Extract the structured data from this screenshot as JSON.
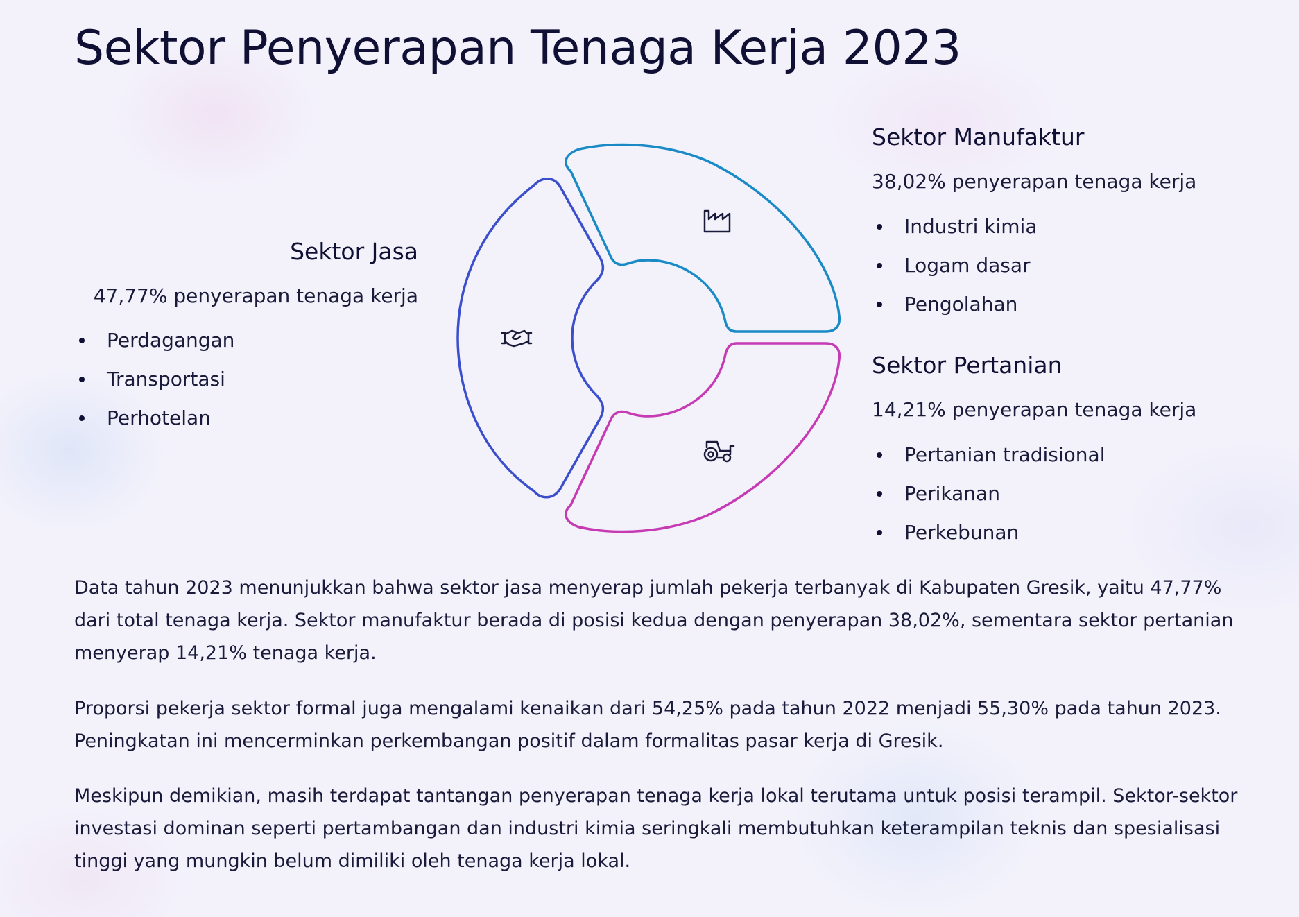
{
  "title": "Sektor Penyerapan Tenaga Kerja 2023",
  "sectors": {
    "jasa": {
      "name": "Sektor Jasa",
      "share": "47,77% penyerapan tenaga kerja",
      "share_value": 47.77,
      "items": [
        "Perdagangan",
        "Transportasi",
        "Perhotelan"
      ],
      "color": "#3b4fcc",
      "icon": "handshake-icon"
    },
    "manufaktur": {
      "name": "Sektor Manufaktur",
      "share": "38,02% penyerapan tenaga kerja",
      "share_value": 38.02,
      "items": [
        "Industri kimia",
        "Logam dasar",
        "Pengolahan"
      ],
      "color": "#1a8ac6",
      "icon": "factory-icon"
    },
    "pertanian": {
      "name": "Sektor Pertanian",
      "share": "14,21% penyerapan tenaga kerja",
      "share_value": 14.21,
      "items": [
        "Pertanian tradisional",
        "Perikanan",
        "Perkebunan"
      ],
      "color": "#c63bb4",
      "icon": "tractor-icon"
    }
  },
  "paragraphs": [
    "Data tahun 2023 menunjukkan bahwa sektor jasa menyerap jumlah pekerja terbanyak di Kabupaten Gresik, yaitu 47,77% dari total tenaga kerja. Sektor manufaktur berada di posisi kedua dengan penyerapan 38,02%, sementara sektor pertanian menyerap 14,21% tenaga kerja.",
    "Proporsi pekerja sektor formal juga mengalami kenaikan dari 54,25% pada tahun 2022 menjadi 55,30% pada tahun 2023. Peningkatan ini mencerminkan perkembangan positif dalam formalitas pasar kerja di Gresik.",
    "Meskipun demikian, masih terdapat tantangan penyerapan tenaga kerja lokal terutama untuk posisi terampil. Sektor-sektor investasi dominan seperti pertambangan dan industri kimia seringkali membutuhkan keterampilan teknis dan spesialisasi tinggi yang mungkin belum dimiliki oleh tenaga kerja lokal."
  ]
}
